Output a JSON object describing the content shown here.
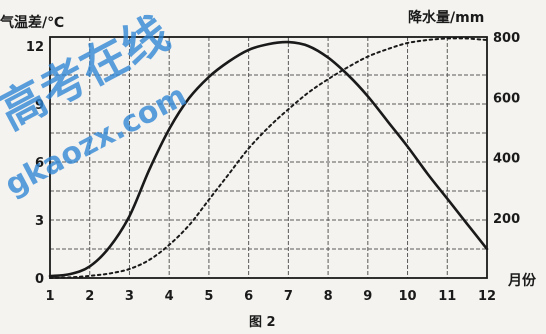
{
  "chart_data": {
    "type": "line",
    "caption": "图 2",
    "xlabel": "月份",
    "ylabel_left": "气温差/℃",
    "ylabel_right": "降水量/mm",
    "x_ticks": [
      1,
      2,
      3,
      4,
      5,
      6,
      7,
      8,
      9,
      10,
      11,
      12
    ],
    "xlim": [
      1,
      12
    ],
    "y_left_ticks": [
      0,
      3,
      6,
      9,
      12
    ],
    "y_left_lim": [
      0,
      12
    ],
    "y_right_ticks": [
      200,
      400,
      600,
      800
    ],
    "y_right_lim": [
      0,
      800
    ],
    "grid": true,
    "series": [
      {
        "style": "solid",
        "axis": "left",
        "color": "#1a1a1a",
        "x": [
          1,
          1.5,
          2,
          2.5,
          3,
          3.5,
          4,
          4.5,
          5,
          5.5,
          6,
          6.5,
          7,
          7.5,
          8,
          8.5,
          9,
          9.5,
          10,
          10.5,
          11,
          11.5,
          12
        ],
        "values": [
          0.1,
          0.2,
          0.6,
          1.6,
          3.2,
          5.6,
          7.7,
          9.3,
          10.4,
          11.2,
          11.8,
          12.1,
          12.2,
          12.0,
          11.4,
          10.5,
          9.4,
          8.1,
          6.8,
          5.4,
          4.1,
          2.8,
          1.5
        ]
      },
      {
        "style": "dashed",
        "axis": "right",
        "color": "#1a1a1a",
        "x": [
          1,
          1.5,
          2,
          2.5,
          3,
          3.5,
          4,
          4.5,
          5,
          5.5,
          6,
          6.5,
          7,
          7.5,
          8,
          8.5,
          9,
          9.5,
          10,
          10.5,
          11,
          11.5,
          12
        ],
        "values": [
          0,
          2,
          7,
          15,
          30,
          60,
          110,
          175,
          260,
          345,
          430,
          500,
          560,
          615,
          660,
          700,
          735,
          760,
          780,
          790,
          795,
          795,
          790
        ]
      }
    ]
  },
  "watermark": {
    "text": "高考在线",
    "url": "gkaozx.com",
    "color": "#2f86d6"
  }
}
